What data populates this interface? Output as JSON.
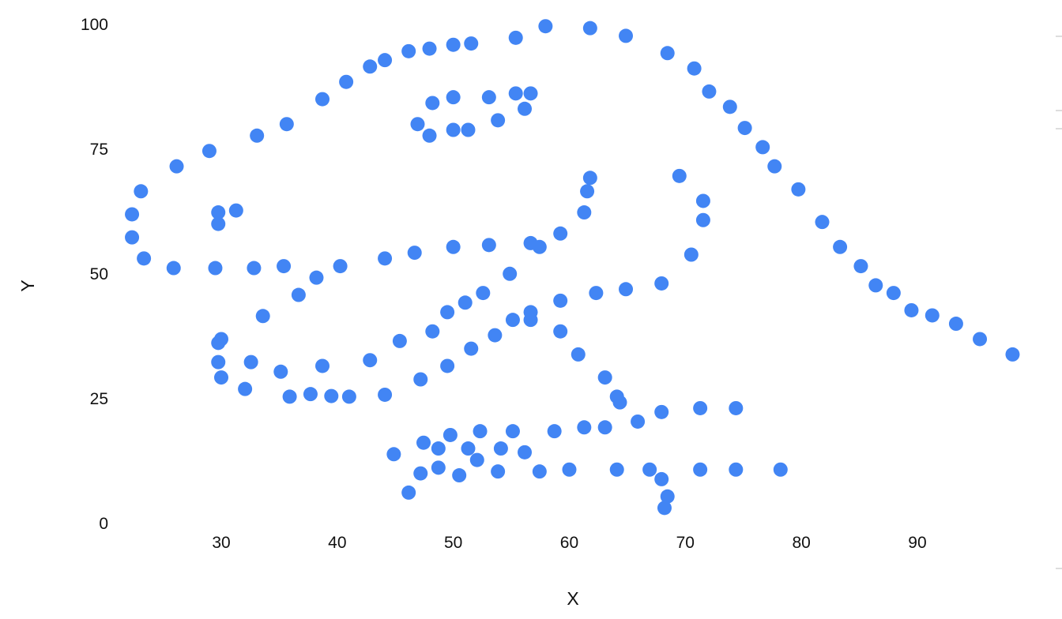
{
  "chart_data": {
    "type": "scatter",
    "title": "",
    "xlabel": "X",
    "ylabel": "Y",
    "xlim": [
      20,
      100
    ],
    "ylim": [
      0,
      100
    ],
    "xticks": [
      "30",
      "40",
      "50",
      "60",
      "70",
      "80",
      "90"
    ],
    "yticks": [
      "0",
      "25",
      "50",
      "75",
      "100"
    ],
    "grid": false,
    "color": "#4285f4",
    "x": [
      55.3846,
      51.5385,
      46.1538,
      42.8205,
      40.7692,
      38.7179,
      35.641,
      33.0769,
      28.9744,
      26.1538,
      23.0769,
      22.3077,
      22.3077,
      23.3333,
      25.8974,
      29.4872,
      32.8205,
      35.3846,
      40.2564,
      44.1026,
      46.6667,
      50,
      53.0769,
      56.6667,
      59.2308,
      61.2821,
      61.5385,
      61.7949,
      57.4359,
      54.8718,
      52.5641,
      48.2051,
      49.4872,
      51.0256,
      45.3846,
      42.8205,
      38.7179,
      35.1282,
      32.5641,
      30,
      33.5897,
      36.6667,
      38.2051,
      29.7436,
      29.7436,
      30,
      32.0513,
      35.8974,
      41.0256,
      44.1026,
      47.1795,
      49.4872,
      51.5385,
      53.5897,
      55.1282,
      56.6667,
      59.2308,
      62.3077,
      64.8718,
      67.9487,
      70.5128,
      71.5385,
      71.5385,
      69.4872,
      46.9231,
      48.2051,
      50,
      53.0769,
      55.3846,
      56.6667,
      56.1538,
      53.8462,
      51.2821,
      50,
      47.9487,
      29.7436,
      29.7436,
      31.2821,
      57.9487,
      61.7949,
      64.8718,
      68.4615,
      70.7692,
      72.0513,
      73.8462,
      75.1282,
      76.6667,
      77.6923,
      79.7436,
      81.7949,
      83.3333,
      85.1282,
      86.4103,
      87.9487,
      89.4872,
      93.3333,
      95.3846,
      98.2051,
      56.6667,
      59.2308,
      60.7692,
      63.0769,
      64.1026,
      64.359,
      74.359,
      71.2821,
      67.9487,
      65.8974,
      63.0769,
      61.2821,
      58.7179,
      55.1282,
      52.3077,
      49.7436,
      47.4359,
      44.8718,
      48.7179,
      51.2821,
      54.1026,
      56.1538,
      52.0513,
      48.7179,
      47.1795,
      46.1538,
      50.5128,
      53.8462,
      57.4359,
      60,
      64.1026,
      66.9231,
      71.2821,
      74.359,
      78.2051,
      67.9487,
      68.4615,
      68.2051,
      37.6923,
      39.4872,
      91.2821,
      50,
      47.9487,
      44.1026
    ],
    "y": [
      97.1795,
      96.0256,
      94.4872,
      91.4103,
      88.3333,
      84.8718,
      79.8718,
      77.5641,
      74.4872,
      71.4103,
      66.4103,
      61.7949,
      57.1795,
      52.9487,
      51.0256,
      51.0256,
      51.0256,
      51.4103,
      51.4103,
      52.9487,
      54.1026,
      55.2564,
      55.641,
      56.0256,
      57.9487,
      62.1795,
      66.4103,
      69.1026,
      55.2564,
      49.8718,
      46.0256,
      38.3333,
      42.1795,
      44.1026,
      36.4103,
      32.5641,
      31.4103,
      30.2564,
      32.1795,
      36.7949,
      41.4103,
      45.641,
      49.1026,
      36.0256,
      32.1795,
      29.1026,
      26.7949,
      25.2564,
      25.2564,
      25.641,
      28.718,
      31.4103,
      34.8718,
      37.5641,
      40.641,
      42.1795,
      44.4872,
      46.0256,
      46.7949,
      47.9487,
      53.718,
      60.641,
      64.4872,
      69.4872,
      79.8718,
      84.1026,
      85.2564,
      85.2564,
      86.0256,
      86.0256,
      82.9487,
      80.641,
      78.718,
      78.718,
      77.5641,
      59.8718,
      62.1795,
      62.5641,
      99.4872,
      99.1026,
      97.5641,
      94.1026,
      91.0256,
      86.4103,
      83.3333,
      79.1026,
      75.2564,
      71.4103,
      66.7949,
      60.2564,
      55.2564,
      51.4103,
      47.5641,
      46.0256,
      42.5641,
      39.8718,
      36.7949,
      33.718,
      40.641,
      38.3333,
      33.718,
      29.1026,
      25.2564,
      24.1026,
      22.9487,
      22.9487,
      22.1795,
      20.2564,
      19.1026,
      19.1026,
      18.3333,
      18.3333,
      18.3333,
      17.5641,
      16.0256,
      13.7179,
      14.8718,
      14.8718,
      14.8718,
      14.1026,
      12.5641,
      11.0256,
      9.8718,
      6.0256,
      9.4872,
      10.2564,
      10.2564,
      10.641,
      10.641,
      10.641,
      10.641,
      10.641,
      10.641,
      8.7179,
      5.2564,
      2.9487,
      25.7692,
      25.3846,
      41.5385,
      95.7692,
      95,
      92.6923
    ]
  }
}
